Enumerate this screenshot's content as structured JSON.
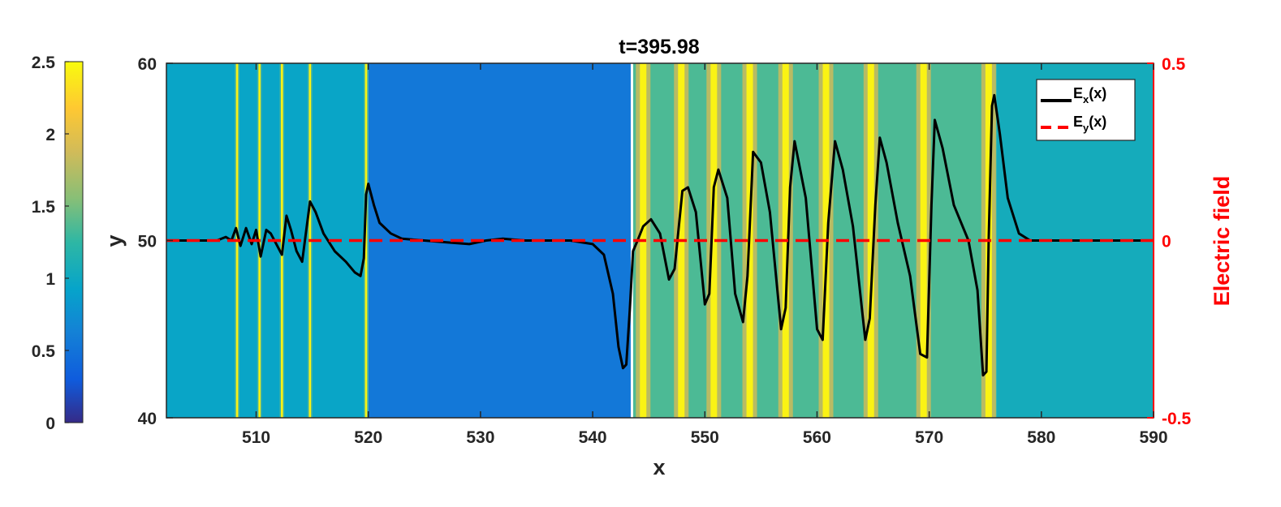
{
  "chart_data": {
    "type": "heatmap",
    "title": "t=395.98",
    "xlabel": "x",
    "ylabel": "y",
    "y2label": "Electric field",
    "xlim": [
      502,
      590
    ],
    "ylim": [
      40,
      60
    ],
    "y2lim": [
      -0.5,
      0.5
    ],
    "xticks": [
      "510",
      "520",
      "530",
      "540",
      "550",
      "560",
      "570",
      "580",
      "590"
    ],
    "yticks": [
      "40",
      "50",
      "60"
    ],
    "y2ticks": [
      "-0.5",
      "0",
      "0.5"
    ],
    "colorbar": {
      "range": [
        0,
        2.5
      ],
      "ticks": [
        "0",
        "0.5",
        "1",
        "1.5",
        "2",
        "2.5"
      ],
      "colormap": "parula"
    },
    "heatmap_regions": [
      {
        "x_from": 502,
        "x_to": 520,
        "level": 0.95
      },
      {
        "x_from": 520,
        "x_to": 543.5,
        "level": 0.55
      },
      {
        "x_from": 543.5,
        "x_to": 576,
        "level": 1.35
      },
      {
        "x_from": 576,
        "x_to": 590,
        "level": 1.05
      }
    ],
    "bright_filaments_x": [
      508.3,
      510.3,
      512.3,
      514.8,
      519.8,
      544.5,
      547.9,
      550.8,
      554.0,
      557.2,
      560.8,
      564.8,
      569.5,
      575.3
    ],
    "white_line_x": 543.5,
    "legend_position": "top-right",
    "series": [
      {
        "name": "E_x(x)",
        "color": "#000000",
        "style": "solid",
        "x": [
          502,
          505,
          506.5,
          507.3,
          507.8,
          508.2,
          508.6,
          509.1,
          509.6,
          510.0,
          510.4,
          510.9,
          511.3,
          511.8,
          512.3,
          512.7,
          513.1,
          513.6,
          514.1,
          514.8,
          515.3,
          516,
          517,
          518,
          518.8,
          519.3,
          519.6,
          519.8,
          520.0,
          520.5,
          521,
          522,
          523,
          525,
          527,
          529,
          530.5,
          532,
          534,
          536,
          538,
          540,
          541,
          541.8,
          542.3,
          542.7,
          543.0,
          543.3,
          543.6,
          544.0,
          544.5,
          545.2,
          546.0,
          546.8,
          547.3,
          548.0,
          548.5,
          549.2,
          550.0,
          550.4,
          550.8,
          551.2,
          552.0,
          552.7,
          553.4,
          553.8,
          554.3,
          555.0,
          555.8,
          556.8,
          557.2,
          557.6,
          558.0,
          559.0,
          560.0,
          560.5,
          561.0,
          561.6,
          562.3,
          563.2,
          564.3,
          564.7,
          565.2,
          565.6,
          566.2,
          567.2,
          568.3,
          569.2,
          569.8,
          570.2,
          570.5,
          571.2,
          572.2,
          573.5,
          574.3,
          574.8,
          575.1,
          575.3,
          575.6,
          575.8,
          576.3,
          577.0,
          578.0,
          579.0,
          580.0,
          582,
          585,
          590
        ],
        "y": [
          0.0,
          0.0,
          0.0,
          0.01,
          0.0,
          0.035,
          -0.015,
          0.035,
          -0.01,
          0.03,
          -0.045,
          0.03,
          0.02,
          -0.01,
          -0.04,
          0.07,
          0.03,
          -0.03,
          -0.06,
          0.11,
          0.08,
          0.02,
          -0.03,
          -0.06,
          -0.09,
          -0.1,
          -0.05,
          0.13,
          0.16,
          0.1,
          0.05,
          0.02,
          0.005,
          0.0,
          -0.005,
          -0.01,
          0.0,
          0.005,
          0.0,
          0.0,
          0.0,
          -0.01,
          -0.04,
          -0.15,
          -0.3,
          -0.36,
          -0.35,
          -0.2,
          -0.03,
          0.0,
          0.04,
          0.06,
          0.02,
          -0.11,
          -0.08,
          0.14,
          0.15,
          0.08,
          -0.18,
          -0.15,
          0.15,
          0.2,
          0.12,
          -0.15,
          -0.23,
          -0.1,
          0.25,
          0.22,
          0.08,
          -0.25,
          -0.19,
          0.15,
          0.28,
          0.12,
          -0.25,
          -0.28,
          0.05,
          0.28,
          0.2,
          0.04,
          -0.28,
          -0.22,
          0.1,
          0.29,
          0.22,
          0.05,
          -0.1,
          -0.32,
          -0.33,
          0.1,
          0.34,
          0.26,
          0.1,
          0.0,
          -0.14,
          -0.38,
          -0.37,
          0.0,
          0.38,
          0.41,
          0.3,
          0.12,
          0.02,
          0.0,
          0.0,
          0.0,
          0.0,
          0.0
        ]
      },
      {
        "name": "E_y(x)",
        "color": "#ff0000",
        "style": "dashed",
        "x": [
          502,
          590
        ],
        "y": [
          0.0,
          0.0
        ]
      }
    ]
  }
}
